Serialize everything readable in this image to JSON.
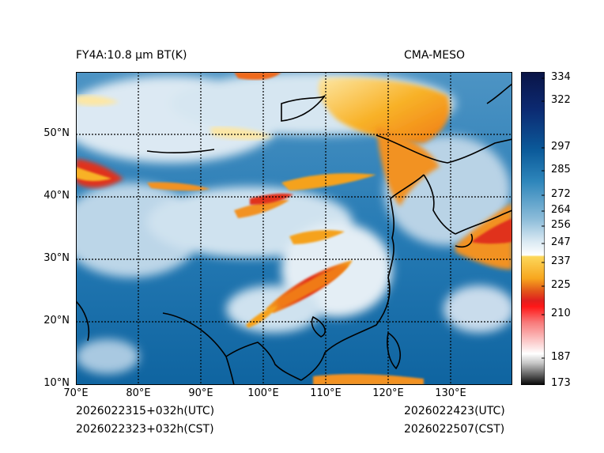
{
  "header": {
    "left_title": "FY4A:10.8 µm BT(K)",
    "right_title": "CMA-MESO"
  },
  "map": {
    "lat_labels": [
      "50°N",
      "40°N",
      "30°N",
      "20°N",
      "10°N"
    ],
    "lat_values": [
      50,
      40,
      30,
      20,
      10
    ],
    "lon_labels": [
      "70°E",
      "80°E",
      "90°E",
      "100°E",
      "110°E",
      "120°E",
      "130°E"
    ],
    "lon_values": [
      70,
      80,
      90,
      100,
      110,
      120,
      130
    ],
    "extent": {
      "lon_min": 70,
      "lon_max": 140,
      "lat_min": 10,
      "lat_max": 60
    }
  },
  "colorbar": {
    "labels": [
      "334",
      "322",
      "297",
      "285",
      "272",
      "264",
      "256",
      "247",
      "237",
      "225",
      "210",
      "187",
      "173"
    ],
    "values": [
      334,
      322,
      297,
      285,
      272,
      264,
      256,
      247,
      237,
      225,
      210,
      187,
      173
    ],
    "vmin": 173,
    "vmax": 336
  },
  "footer": {
    "init_utc": "2026022315+032h(UTC)",
    "init_cst": "2026022323+032h(CST)",
    "valid_utc": "2026022423(UTC)",
    "valid_cst": "2026022507(CST)"
  },
  "colors": {
    "sea_blue": "#1a6fa8",
    "cloud_white": "#e8f0f6",
    "cold_orange": "#f5a21c",
    "cold_red": "#e0301e",
    "coast_line": "#000000"
  }
}
